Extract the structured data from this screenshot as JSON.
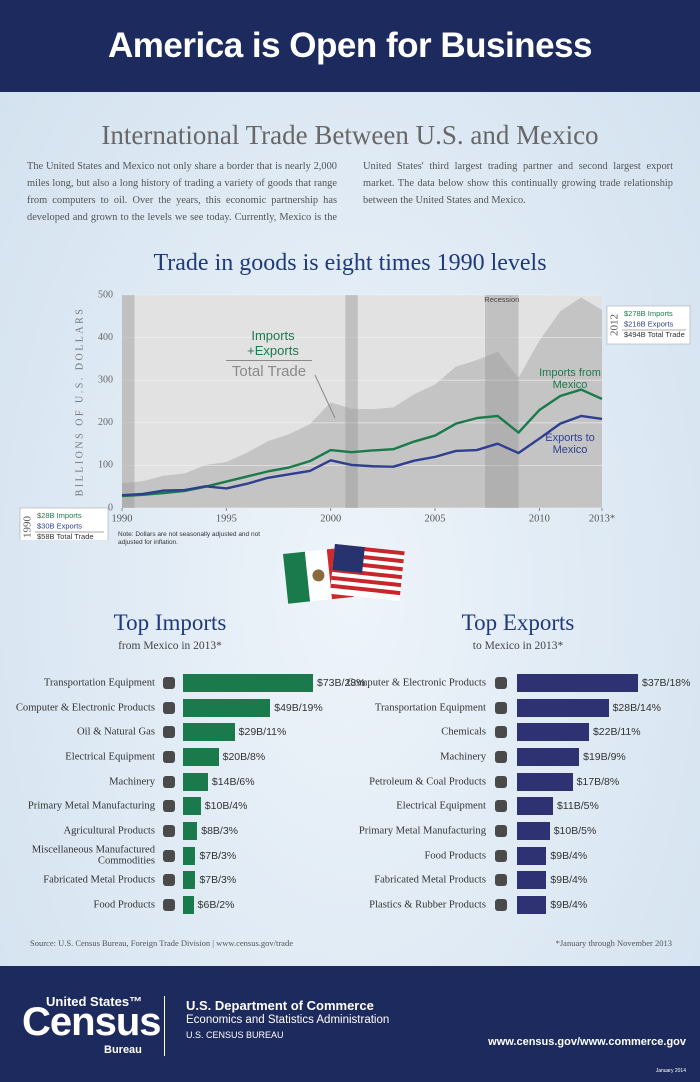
{
  "header": {
    "title": "America is Open for Business"
  },
  "intro": {
    "title": "International Trade Between U.S. and Mexico",
    "text": "The United States and Mexico not only share a border that is nearly 2,000 miles long, but also a long history of trading a variety of goods that range from computers to oil. Over the years, this economic partnership has developed and grown to the levels we see today. Currently, Mexico is the United States' third largest trading partner and second largest export market. The data below show this continually growing trade relationship between the United States and Mexico."
  },
  "chart_data": [
    {
      "type": "line",
      "title": "Trade in goods is eight times 1990 levels",
      "y_label": "BILLIONS OF U.S. DOLLARS",
      "x": [
        1990,
        1991,
        1992,
        1993,
        1994,
        1995,
        1996,
        1997,
        1998,
        1999,
        2000,
        2001,
        2002,
        2003,
        2004,
        2005,
        2006,
        2007,
        2008,
        2009,
        2010,
        2011,
        2012,
        2013
      ],
      "series": [
        {
          "name": "Total Trade",
          "style": "area",
          "color": "#c4c4c4",
          "values": [
            58,
            63,
            76,
            81,
            101,
            108,
            130,
            157,
            173,
            197,
            248,
            233,
            232,
            236,
            267,
            290,
            332,
            347,
            367,
            306,
            393,
            462,
            494,
            465
          ]
        },
        {
          "name": "Imports from Mexico",
          "style": "line",
          "color": "#1b7a4b",
          "values": [
            28,
            31,
            35,
            40,
            50,
            62,
            74,
            86,
            95,
            110,
            136,
            131,
            135,
            138,
            156,
            170,
            198,
            211,
            216,
            177,
            230,
            263,
            278,
            256
          ]
        },
        {
          "name": "Exports to Mexico",
          "style": "line",
          "color": "#2d3f8e",
          "values": [
            30,
            33,
            41,
            42,
            51,
            46,
            57,
            71,
            79,
            87,
            112,
            101,
            98,
            97,
            111,
            120,
            134,
            136,
            151,
            129,
            163,
            198,
            216,
            209
          ]
        }
      ],
      "xlim": [
        1990,
        2013
      ],
      "ylim": [
        0,
        500
      ],
      "xticks": [
        1990,
        1995,
        2000,
        2005,
        2010,
        {
          "value": 2013,
          "label": "2013*"
        }
      ],
      "yticks": [
        0,
        100,
        200,
        300,
        400,
        500
      ],
      "grid": true,
      "recessions": [
        [
          1990,
          1990.6
        ],
        [
          2000.7,
          2001.3
        ],
        [
          2007.4,
          2009
        ]
      ],
      "annotations": {
        "total_prefix": "Imports +Exports",
        "recession": "Recession",
        "note": "Note: Dollars are not seasonally adjusted and not adjusted for inflation."
      },
      "callouts": [
        {
          "year": "1990",
          "lines": [
            "$28B Imports",
            "$30B Exports",
            "$58B Total Trade"
          ]
        },
        {
          "year": "2012",
          "lines": [
            "$278B Imports",
            "$216B Exports",
            "$494B Total Trade"
          ]
        }
      ]
    },
    {
      "type": "bar",
      "orientation": "horizontal",
      "title": "Top Imports",
      "subtitle": "from Mexico in 2013*",
      "color": "#1b7a4b",
      "categories": [
        "Transportation Equipment",
        "Computer & Electronic Products",
        "Oil & Natural Gas",
        "Electrical Equipment",
        "Machinery",
        "Primary Metal Manufacturing",
        "Agricultural Products",
        "Miscellaneous Manufactured Commodities",
        "Fabricated Metal Products",
        "Food Products"
      ],
      "values": [
        73,
        49,
        29,
        20,
        14,
        10,
        8,
        7,
        7,
        6
      ],
      "value_labels": [
        "$73B/28%",
        "$49B/19%",
        "$29B/11%",
        "$20B/8%",
        "$14B/6%",
        "$10B/4%",
        "$8B/3%",
        "$7B/3%",
        "$7B/3%",
        "$6B/2%"
      ]
    },
    {
      "type": "bar",
      "orientation": "horizontal",
      "title": "Top Exports",
      "subtitle": "to Mexico in 2013*",
      "color": "#2e3272",
      "categories": [
        "Computer & Electronic Products",
        "Transportation Equipment",
        "Chemicals",
        "Machinery",
        "Petroleum & Coal Products",
        "Electrical Equipment",
        "Primary Metal Manufacturing",
        "Food Products",
        "Fabricated Metal Products",
        "Plastics & Rubber Products"
      ],
      "values": [
        37,
        28,
        22,
        19,
        17,
        11,
        10,
        9,
        9,
        9
      ],
      "value_labels": [
        "$37B/18%",
        "$28B/14%",
        "$22B/11%",
        "$19B/9%",
        "$17B/8%",
        "$11B/5%",
        "$10B/5%",
        "$9B/4%",
        "$9B/4%",
        "$9B/4%"
      ]
    }
  ],
  "notes": {
    "source": "Source: U.S. Census Bureau, Foreign Trade Division | www.census.gov/trade",
    "footnote": "*January through November 2013"
  },
  "footer": {
    "logo": [
      "United States™",
      "Census",
      "Bureau"
    ],
    "department": "U.S. Department of Commerce",
    "administration": "Economics and Statistics Administration",
    "bureau": "U.S. CENSUS BUREAU",
    "url": "www.census.gov/www.commerce.gov",
    "date": "January 2014"
  }
}
